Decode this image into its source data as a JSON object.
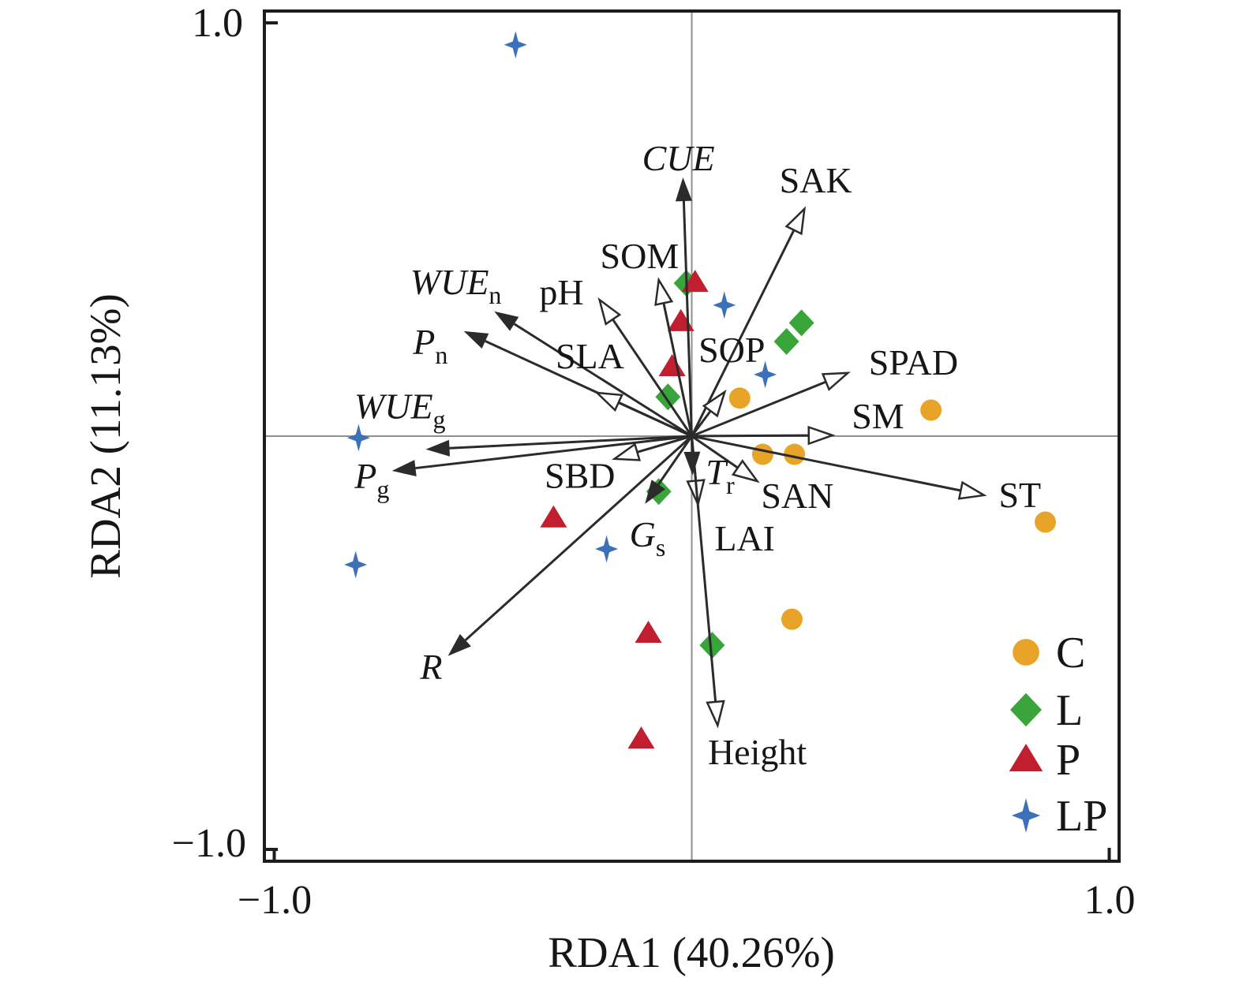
{
  "figure": {
    "background": "#ffffff",
    "border_color": "#1c1c1c",
    "axis_line_color": "#8f8f8f",
    "arrow_color": "#2b2b2b",
    "text_color": "#161616"
  },
  "chart_data": {
    "type": "scatter",
    "subtype": "RDA ordination biplot with environmental/physiological vectors",
    "title": "",
    "xlabel": "RDA1 (40.26%)",
    "ylabel": "RDA2 (11.13%)",
    "xlim": [
      -1.0,
      1.0
    ],
    "ylim": [
      -1.0,
      1.0
    ],
    "grid": false,
    "origin_crosshair": true,
    "x_ticks": [
      {
        "value": -1.0,
        "label": "−1.0"
      },
      {
        "value": 1.0,
        "label": "1.0"
      }
    ],
    "y_ticks": [
      {
        "value": -1.0,
        "label": "−1.0"
      },
      {
        "value": 1.0,
        "label": "1.0"
      }
    ],
    "arrows": [
      {
        "name": "CUE",
        "x": -0.021,
        "y": 0.626,
        "head": "filled",
        "italic": true,
        "label": "CUE",
        "sub": "",
        "label_x": -0.032,
        "label_y": 0.674
      },
      {
        "name": "SAK",
        "x": 0.27,
        "y": 0.55,
        "head": "open",
        "italic": false,
        "label": "SAK",
        "sub": "",
        "label_x": 0.297,
        "label_y": 0.62
      },
      {
        "name": "SOM",
        "x": -0.079,
        "y": 0.378,
        "head": "open",
        "italic": false,
        "label": "SOM",
        "sub": "",
        "label_x": -0.125,
        "label_y": 0.437
      },
      {
        "name": "pH",
        "x": -0.221,
        "y": 0.33,
        "head": "open",
        "italic": false,
        "label": "pH",
        "sub": "",
        "label_x": -0.312,
        "label_y": 0.349
      },
      {
        "name": "WUEn",
        "x": -0.473,
        "y": 0.302,
        "head": "filled",
        "italic": true,
        "label": "WUE",
        "sub": "n",
        "label_x": -0.565,
        "label_y": 0.374
      },
      {
        "name": "Pn",
        "x": -0.546,
        "y": 0.254,
        "head": "filled",
        "italic": true,
        "label": "P",
        "sub": "n",
        "label_x": -0.626,
        "label_y": 0.229
      },
      {
        "name": "SLA",
        "x": -0.227,
        "y": 0.105,
        "head": "open",
        "italic": false,
        "label": "SLA",
        "sub": "",
        "label_x": -0.244,
        "label_y": 0.195
      },
      {
        "name": "SOP",
        "x": 0.079,
        "y": 0.107,
        "head": "open",
        "italic": false,
        "label": "SOP",
        "sub": "",
        "label_x": 0.096,
        "label_y": 0.21
      },
      {
        "name": "SPAD",
        "x": 0.374,
        "y": 0.153,
        "head": "open",
        "italic": false,
        "label": "SPAD",
        "sub": "",
        "label_x": 0.531,
        "label_y": 0.179
      },
      {
        "name": "SM",
        "x": 0.337,
        "y": 0.002,
        "head": "open",
        "italic": false,
        "label": "SM",
        "sub": "",
        "label_x": 0.446,
        "label_y": 0.05
      },
      {
        "name": "WUEg",
        "x": -0.637,
        "y": -0.032,
        "head": "filled",
        "italic": true,
        "label": "WUE",
        "sub": "g",
        "label_x": -0.699,
        "label_y": 0.073
      },
      {
        "name": "Pg",
        "x": -0.718,
        "y": -0.084,
        "head": "filled",
        "italic": true,
        "label": "P",
        "sub": "g",
        "label_x": -0.766,
        "label_y": -0.095
      },
      {
        "name": "SBD",
        "x": -0.185,
        "y": -0.055,
        "head": "open",
        "italic": false,
        "label": "SBD",
        "sub": "",
        "label_x": -0.268,
        "label_y": -0.094
      },
      {
        "name": "Tr",
        "x": 0.002,
        "y": -0.095,
        "head": "filled",
        "italic": true,
        "label": "T",
        "sub": "r",
        "label_x": 0.068,
        "label_y": -0.086
      },
      {
        "name": "SAN",
        "x": 0.157,
        "y": -0.109,
        "head": "open",
        "italic": false,
        "label": "SAN",
        "sub": "",
        "label_x": 0.253,
        "label_y": -0.143
      },
      {
        "name": "LAI",
        "x": 0.015,
        "y": -0.165,
        "head": "open",
        "italic": false,
        "label": "LAI",
        "sub": "",
        "label_x": 0.127,
        "label_y": -0.246
      },
      {
        "name": "Gs",
        "x": -0.112,
        "y": -0.164,
        "head": "filled",
        "italic": true,
        "label": "G",
        "sub": "s",
        "label_x": -0.106,
        "label_y": -0.237
      },
      {
        "name": "ST",
        "x": 0.7,
        "y": -0.143,
        "head": "open",
        "italic": false,
        "label": "ST",
        "sub": "",
        "label_x": 0.786,
        "label_y": -0.141
      },
      {
        "name": "R",
        "x": -0.584,
        "y": -0.532,
        "head": "filled",
        "italic": true,
        "label": "R",
        "sub": "",
        "label_x": -0.624,
        "label_y": -0.557
      },
      {
        "name": "Height",
        "x": 0.062,
        "y": -0.7,
        "head": "open",
        "italic": false,
        "label": "Height",
        "sub": "",
        "label_x": 0.157,
        "label_y": -0.763
      }
    ],
    "series": [
      {
        "name": "C",
        "marker": "circle",
        "color": "#E8A428",
        "points": [
          [
            0.115,
            0.092
          ],
          [
            0.17,
            -0.044
          ],
          [
            0.246,
            -0.044
          ],
          [
            0.573,
            0.063
          ],
          [
            0.847,
            -0.208
          ],
          [
            0.24,
            -0.443
          ]
        ]
      },
      {
        "name": "L",
        "marker": "diamond",
        "color": "#39A439",
        "points": [
          [
            -0.013,
            0.37
          ],
          [
            0.263,
            0.274
          ],
          [
            0.227,
            0.229
          ],
          [
            -0.057,
            0.095
          ],
          [
            -0.079,
            -0.134
          ],
          [
            0.049,
            -0.506
          ]
        ]
      },
      {
        "name": "P",
        "marker": "triangle",
        "color": "#C11F2F",
        "points": [
          [
            0.008,
            0.372
          ],
          [
            -0.026,
            0.277
          ],
          [
            -0.047,
            0.168
          ],
          [
            -0.331,
            -0.198
          ],
          [
            -0.104,
            -0.477
          ],
          [
            -0.121,
            -0.733
          ]
        ]
      },
      {
        "name": "LP",
        "marker": "star4",
        "color": "#3C70B8",
        "points": [
          [
            -0.422,
            0.947
          ],
          [
            0.078,
            0.317
          ],
          [
            0.176,
            0.149
          ],
          [
            -0.798,
            -0.004
          ],
          [
            -0.204,
            -0.273
          ],
          [
            -0.805,
            -0.311
          ]
        ]
      }
    ],
    "legend": {
      "position": "bottom-right",
      "items": [
        {
          "label": "C",
          "marker": "circle",
          "color": "#E8A428"
        },
        {
          "label": "L",
          "marker": "diamond",
          "color": "#39A439"
        },
        {
          "label": "P",
          "marker": "triangle",
          "color": "#C11F2F"
        },
        {
          "label": "LP",
          "marker": "star4",
          "color": "#3C70B8"
        }
      ]
    }
  }
}
